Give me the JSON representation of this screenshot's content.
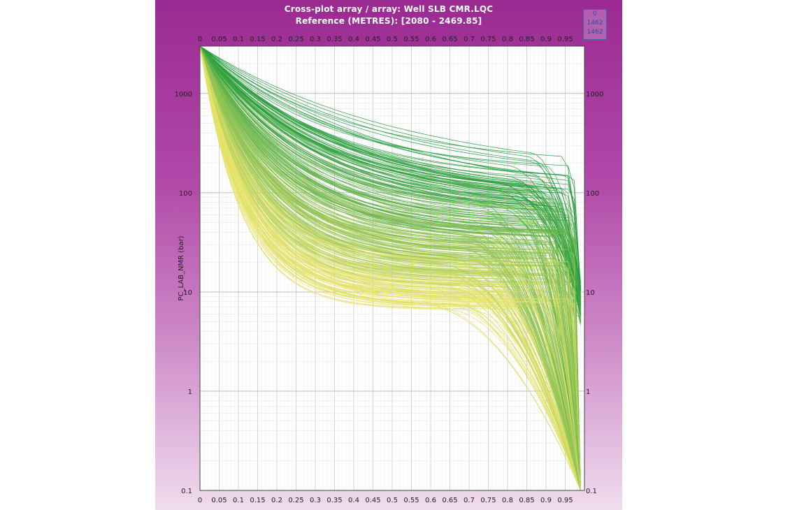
{
  "header": {
    "title": "Cross-plot array / array: Well SLB CMR.LQC",
    "subtitle": "Reference (METRES): [2080 - 2469.85]"
  },
  "badge": {
    "line1": "0",
    "line2": "1462",
    "line3": "1462"
  },
  "colors": {
    "frame": "#9a2a92",
    "wet": "#1f9a3c",
    "dry": "#e8e36a"
  },
  "chart_data": {
    "type": "line",
    "title": "Cross-plot array / array: Well SLB CMR.LQC",
    "subtitle": "Reference (METRES): [2080 - 2469.85]",
    "xlabel": "",
    "ylabel": "PC_LAB_NMR (bar)",
    "xlim": [
      0,
      1
    ],
    "ylim": [
      0.1,
      3000
    ],
    "y_scale": "log",
    "x_ticks": [
      "0",
      "0.05",
      "0.1",
      "0.15",
      "0.2",
      "0.25",
      "0.3",
      "0.35",
      "0.4",
      "0.45",
      "0.5",
      "0.55",
      "0.6",
      "0.65",
      "0.7",
      "0.75",
      "0.8",
      "0.85",
      "0.9",
      "0.95"
    ],
    "y_ticks": [
      "0.1",
      "1",
      "10",
      "100",
      "1000"
    ],
    "grid": true,
    "series_count": 1462,
    "series_description": "saturation curves, green to yellow",
    "representative_series": [
      {
        "x": [
          0,
          0.1,
          0.3,
          0.5,
          0.7,
          0.9,
          0.99
        ],
        "y": [
          3000,
          1500,
          600,
          280,
          150,
          80,
          50
        ]
      },
      {
        "x": [
          0,
          0.1,
          0.3,
          0.5,
          0.7,
          0.9,
          0.99
        ],
        "y": [
          3000,
          600,
          120,
          45,
          18,
          6,
          0.5
        ]
      },
      {
        "x": [
          0,
          0.05,
          0.2,
          0.4,
          0.6,
          0.8,
          0.99
        ],
        "y": [
          3000,
          150,
          25,
          8,
          3,
          1,
          0.2
        ]
      },
      {
        "x": [
          0,
          0.05,
          0.15,
          0.3,
          0.5,
          0.6,
          0.99
        ],
        "y": [
          3000,
          40,
          8,
          3,
          1.5,
          0.9,
          0.1
        ]
      }
    ]
  }
}
